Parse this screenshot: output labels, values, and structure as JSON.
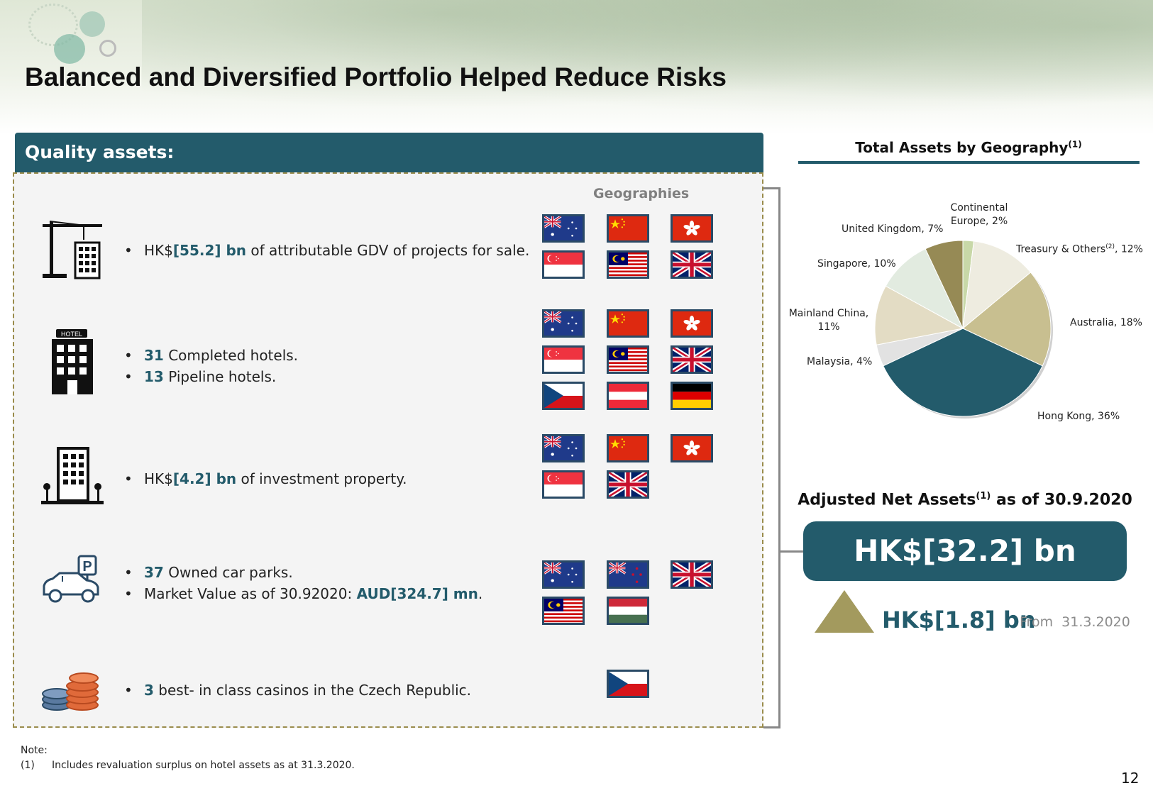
{
  "title": "Balanced and Diversified Portfolio Helped Reduce Risks",
  "panel": {
    "header": "Quality assets:",
    "geographies_label": "Geographies",
    "rows": [
      {
        "icon": "construction-crane-building-icon",
        "lines": [
          {
            "pre": "HK$",
            "bold": "[55.2] bn",
            "post": " of attributable GDV of projects for sale."
          }
        ],
        "flags": [
          "australia",
          "china",
          "hong-kong",
          "singapore",
          "malaysia",
          "united-kingdom"
        ]
      },
      {
        "icon": "hotel-building-icon",
        "lines": [
          {
            "pre": "",
            "bold": "31",
            "post": " Completed hotels."
          },
          {
            "pre": "",
            "bold": "13",
            "post": " Pipeline hotels."
          }
        ],
        "flags": [
          "australia",
          "china",
          "hong-kong",
          "singapore",
          "malaysia",
          "united-kingdom",
          "czech-republic",
          "austria",
          "germany"
        ]
      },
      {
        "icon": "office-building-icon",
        "lines": [
          {
            "pre": "HK$",
            "bold": "[4.2] bn",
            "post": " of investment property."
          }
        ],
        "flags": [
          "australia",
          "china",
          "hong-kong",
          "singapore",
          "united-kingdom"
        ]
      },
      {
        "icon": "car-park-icon",
        "lines": [
          {
            "pre": "",
            "bold": "37",
            "post": " Owned car parks."
          },
          {
            "pre": "Market Value as of 30.92020: ",
            "bold": "AUD[324.7] mn",
            "post": "."
          }
        ],
        "flags": [
          "australia",
          "new-zealand",
          "united-kingdom",
          "malaysia",
          "hungary"
        ]
      },
      {
        "icon": "casino-chips-icon",
        "lines": [
          {
            "pre": "",
            "bold": "3",
            "post": " best- in class casinos in the Czech Republic."
          }
        ],
        "flags": [
          "czech-republic"
        ]
      }
    ]
  },
  "chart_title": "Total Assets by Geography",
  "chart_title_sup": "(1)",
  "chart_data": {
    "type": "pie",
    "title": "Total Assets by Geography(1)",
    "slices": [
      {
        "label": "Continental Europe",
        "value": 2,
        "color": "#c8d8a8"
      },
      {
        "label": "Treasury & Others(2)",
        "value": 12,
        "color": "#eeece0"
      },
      {
        "label": "Australia",
        "value": 18,
        "color": "#c8bf90"
      },
      {
        "label": "Hong Kong",
        "value": 36,
        "color": "#235b6b"
      },
      {
        "label": "Malaysia",
        "value": 4,
        "color": "#e2e2e2"
      },
      {
        "label": "Mainland China",
        "value": 11,
        "color": "#e3dcc4"
      },
      {
        "label": "Singapore",
        "value": 10,
        "color": "#e2ebe0"
      },
      {
        "label": "United Kingdom",
        "value": 7,
        "color": "#968a55"
      }
    ]
  },
  "pie_labels": {
    "continental": "Continental\nEurope, 2%",
    "treasury_pre": "Treasury & Others",
    "treasury_sup": "(2)",
    "treasury_post": ", 12%",
    "australia": "Australia, 18%",
    "hongkong": "Hong Kong, 36%",
    "malaysia": "Malaysia, 4%",
    "mainland": "Mainland China,\n11%",
    "singapore": "Singapore, 10%",
    "uk": "United Kingdom, 7%"
  },
  "ana": {
    "title_pre": "Adjusted Net Assets",
    "title_sup": "(1)",
    "title_post": " as of 30.9.2020",
    "value": "HK$[32.2] bn",
    "delta": "HK$[1.8] bn",
    "delta_from": "From  31.3.2020"
  },
  "note": {
    "heading": "Note:",
    "num": "(1)",
    "text": "Includes revaluation surplus on hotel assets as at 31.3.2020."
  },
  "page_number": "12",
  "colors": {
    "accent": "#235b6b",
    "gold": "#a39a5e"
  }
}
